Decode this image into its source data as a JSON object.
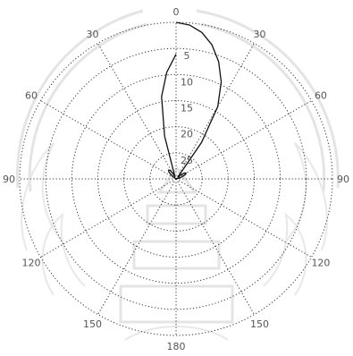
{
  "chart_data": {
    "type": "polar-line",
    "title": "",
    "angle_ticks": [
      "0",
      "30",
      "60",
      "90",
      "120",
      "150",
      "180",
      "150",
      "120",
      "90",
      "60",
      "30"
    ],
    "angle_tick_degrees": [
      0,
      30,
      60,
      90,
      120,
      150,
      180,
      210,
      240,
      270,
      300,
      330
    ],
    "radial_ticks": [
      "5",
      "10",
      "15",
      "20",
      "25"
    ],
    "radial_tick_values": [
      5,
      10,
      15,
      20,
      25
    ],
    "radial_direction": "decreasing-outward",
    "radial_range": [
      0,
      30
    ],
    "angle_zero": "top",
    "grid": true,
    "legend": "none",
    "series": [
      {
        "theta": [
          0,
          5,
          10,
          15,
          20,
          25,
          30,
          35,
          40,
          45,
          50,
          55,
          60,
          65,
          70,
          75,
          80,
          85,
          90,
          95,
          100,
          105,
          110,
          115,
          120,
          125,
          130,
          135,
          140,
          145,
          150,
          155,
          160,
          165,
          170,
          175,
          180,
          185,
          190,
          195,
          200,
          205,
          210,
          215,
          220,
          225,
          230,
          235,
          240,
          245,
          250,
          255,
          260,
          265,
          270,
          275,
          280,
          285,
          290,
          295,
          300,
          305,
          310,
          315,
          320,
          325,
          330,
          335,
          340,
          345,
          350,
          355,
          360
        ],
        "r": [
          0,
          0.4,
          1.5,
          3.4,
          6.1,
          9.5,
          14,
          21.5,
          29,
          29.6,
          28.8,
          28,
          27.8,
          28,
          28.7,
          29.4,
          30,
          30,
          30,
          30,
          30,
          30,
          30,
          30,
          30,
          30,
          30,
          30,
          30,
          30,
          30,
          30,
          30,
          30,
          30,
          30,
          30,
          30,
          30,
          30,
          30,
          30,
          30,
          30,
          30,
          30,
          30,
          30,
          30,
          30,
          30,
          30,
          30,
          30,
          30,
          30,
          30,
          30,
          30,
          30,
          30,
          29.4,
          28.7,
          28,
          27.8,
          28,
          28.8,
          29.6,
          29,
          21.5,
          14,
          9.5,
          6.1,
          3.4,
          1.5,
          0.4,
          0
        ]
      }
    ]
  },
  "watermark": {
    "shape": "university-seal",
    "color": "#e4e4e4"
  }
}
